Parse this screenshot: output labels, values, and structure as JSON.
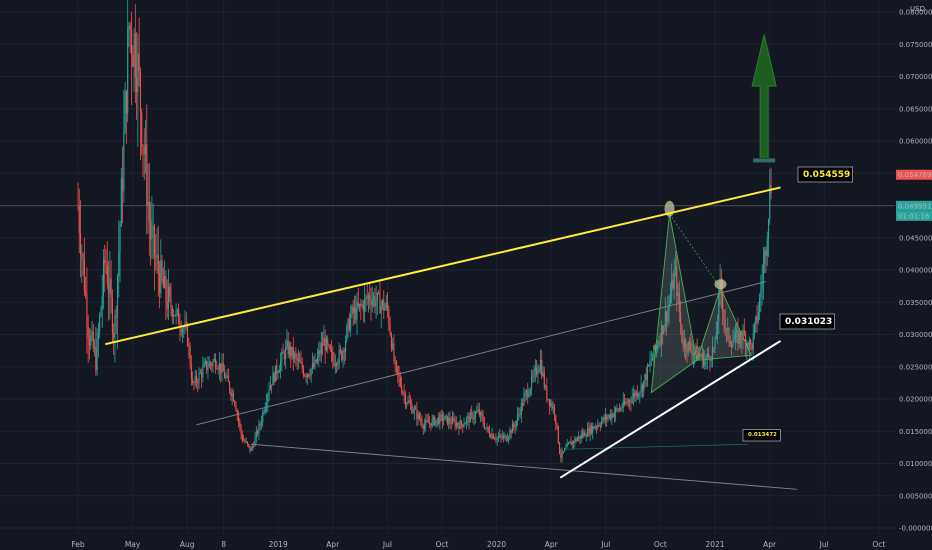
{
  "chart_data": {
    "type": "candlestick",
    "currency": "USD",
    "y_ticks": [
      "0.080000",
      "0.075000",
      "0.070000",
      "0.065000",
      "0.060000",
      "0.055000",
      "0.050000",
      "0.045000",
      "0.040000",
      "0.035000",
      "0.030000",
      "0.025000",
      "0.020000",
      "0.015000",
      "0.010000",
      "0.005000",
      "-0.000000"
    ],
    "y_tick_values": [
      0.08,
      0.075,
      0.07,
      0.065,
      0.06,
      0.055,
      0.05,
      0.045,
      0.04,
      0.035,
      0.03,
      0.025,
      0.02,
      0.015,
      0.01,
      0.005,
      0.0
    ],
    "ylim": [
      0.0,
      0.0825
    ],
    "x_ticks": [
      "Feb",
      "May",
      "Aug",
      "8",
      "2019",
      "Apr",
      "Jul",
      "Oct",
      "2020",
      "Apr",
      "Jul",
      "Oct",
      "2021",
      "Apr",
      "Jul",
      "Oct"
    ],
    "x_tick_t": [
      0.0,
      3.0,
      6.0,
      8.0,
      11.0,
      14.0,
      17.0,
      20.0,
      23.0,
      26.0,
      29.0,
      32.0,
      35.0,
      38.0,
      41.0,
      44.0
    ],
    "xlim": [
      -0.3,
      45.0
    ],
    "price_key_points": [
      [
        0.0,
        0.05
      ],
      [
        0.3,
        0.04
      ],
      [
        0.6,
        0.03
      ],
      [
        1.0,
        0.026
      ],
      [
        1.5,
        0.042
      ],
      [
        2.0,
        0.03
      ],
      [
        2.4,
        0.052
      ],
      [
        2.8,
        0.078
      ],
      [
        3.2,
        0.074
      ],
      [
        3.6,
        0.06
      ],
      [
        4.0,
        0.045
      ],
      [
        4.4,
        0.04
      ],
      [
        4.8,
        0.036
      ],
      [
        5.4,
        0.033
      ],
      [
        6.0,
        0.03
      ],
      [
        6.3,
        0.022
      ],
      [
        7.0,
        0.025
      ],
      [
        7.6,
        0.026
      ],
      [
        8.0,
        0.024
      ],
      [
        8.6,
        0.02
      ],
      [
        9.0,
        0.014
      ],
      [
        9.5,
        0.012
      ],
      [
        10.0,
        0.016
      ],
      [
        10.5,
        0.022
      ],
      [
        11.0,
        0.025
      ],
      [
        11.5,
        0.028
      ],
      [
        12.0,
        0.026
      ],
      [
        12.5,
        0.024
      ],
      [
        13.0,
        0.025
      ],
      [
        13.5,
        0.029
      ],
      [
        14.0,
        0.026
      ],
      [
        14.5,
        0.027
      ],
      [
        15.0,
        0.033
      ],
      [
        15.5,
        0.034
      ],
      [
        16.0,
        0.036
      ],
      [
        16.5,
        0.035
      ],
      [
        17.0,
        0.034
      ],
      [
        17.4,
        0.025
      ],
      [
        18.0,
        0.02
      ],
      [
        19.0,
        0.016
      ],
      [
        20.0,
        0.017
      ],
      [
        21.0,
        0.016
      ],
      [
        22.0,
        0.018
      ],
      [
        22.5,
        0.015
      ],
      [
        23.0,
        0.014
      ],
      [
        23.5,
        0.014
      ],
      [
        24.0,
        0.016
      ],
      [
        24.5,
        0.02
      ],
      [
        25.0,
        0.023
      ],
      [
        25.4,
        0.026
      ],
      [
        25.7,
        0.021
      ],
      [
        26.2,
        0.018
      ],
      [
        26.5,
        0.011
      ],
      [
        27.0,
        0.013
      ],
      [
        28.0,
        0.015
      ],
      [
        29.0,
        0.017
      ],
      [
        30.0,
        0.019
      ],
      [
        31.0,
        0.022
      ],
      [
        32.0,
        0.03
      ],
      [
        32.5,
        0.035
      ],
      [
        32.8,
        0.04
      ],
      [
        33.2,
        0.029
      ],
      [
        34.0,
        0.027
      ],
      [
        34.5,
        0.026
      ],
      [
        35.0,
        0.028
      ],
      [
        35.3,
        0.038
      ],
      [
        35.6,
        0.03
      ],
      [
        36.0,
        0.029
      ],
      [
        36.5,
        0.03
      ],
      [
        37.0,
        0.028
      ],
      [
        37.4,
        0.034
      ],
      [
        37.8,
        0.044
      ],
      [
        38.0,
        0.052
      ],
      [
        38.1,
        0.0535
      ]
    ],
    "annotations": {
      "resistance_label": "0.054559",
      "support_label": "0.031023",
      "level_label": "0.013472",
      "last_price_label": "0.054769",
      "cross_price_label": "0.049951",
      "countdown_label": "01:01:16"
    },
    "colors": {
      "background": "#131722",
      "up": "#26a69a",
      "down": "#ef5350",
      "resistance_line": "#ffeb3b",
      "support_line": "#ffffff",
      "channel_line": "#9598a1",
      "arrow": "#1b5e20",
      "pattern": "#4caf50"
    }
  }
}
